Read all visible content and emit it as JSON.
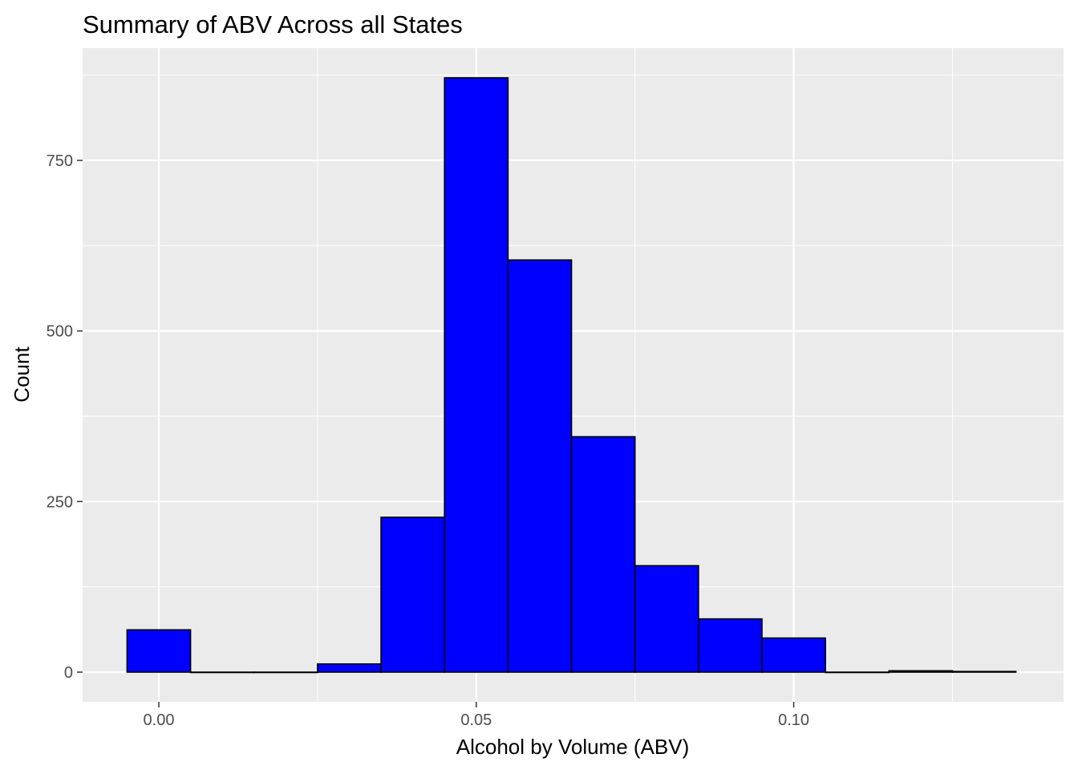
{
  "chart_data": {
    "type": "bar",
    "title": "Summary of ABV Across all States",
    "xlabel": "Alcohol by Volume (ABV)",
    "ylabel": "Count",
    "bin_width": 0.01,
    "bins": [
      {
        "center": 0.0,
        "count": 62
      },
      {
        "center": 0.01,
        "count": 0
      },
      {
        "center": 0.02,
        "count": 0
      },
      {
        "center": 0.03,
        "count": 12
      },
      {
        "center": 0.04,
        "count": 227
      },
      {
        "center": 0.05,
        "count": 871
      },
      {
        "center": 0.06,
        "count": 604
      },
      {
        "center": 0.07,
        "count": 345
      },
      {
        "center": 0.08,
        "count": 156
      },
      {
        "center": 0.09,
        "count": 78
      },
      {
        "center": 0.1,
        "count": 50
      },
      {
        "center": 0.11,
        "count": 0
      },
      {
        "center": 0.12,
        "count": 2
      },
      {
        "center": 0.13,
        "count": 1
      }
    ],
    "x_ticks": [
      {
        "value": 0.0,
        "label": "0.00"
      },
      {
        "value": 0.05,
        "label": "0.05"
      },
      {
        "value": 0.1,
        "label": "0.10"
      }
    ],
    "y_ticks": [
      {
        "value": 0,
        "label": "0"
      },
      {
        "value": 250,
        "label": "250"
      },
      {
        "value": 500,
        "label": "500"
      },
      {
        "value": 750,
        "label": "750"
      }
    ],
    "xlim": [
      -0.012,
      0.1425
    ],
    "ylim": [
      -43.5,
      914.5
    ],
    "grid": true,
    "legend": "none",
    "colors": {
      "bar_fill": "#0000ff",
      "bar_outline": "#000000",
      "panel_background": "#ebebeb",
      "grid": "#ffffff",
      "tick_text": "#4d4d4d",
      "tick_mark": "#333333"
    }
  }
}
